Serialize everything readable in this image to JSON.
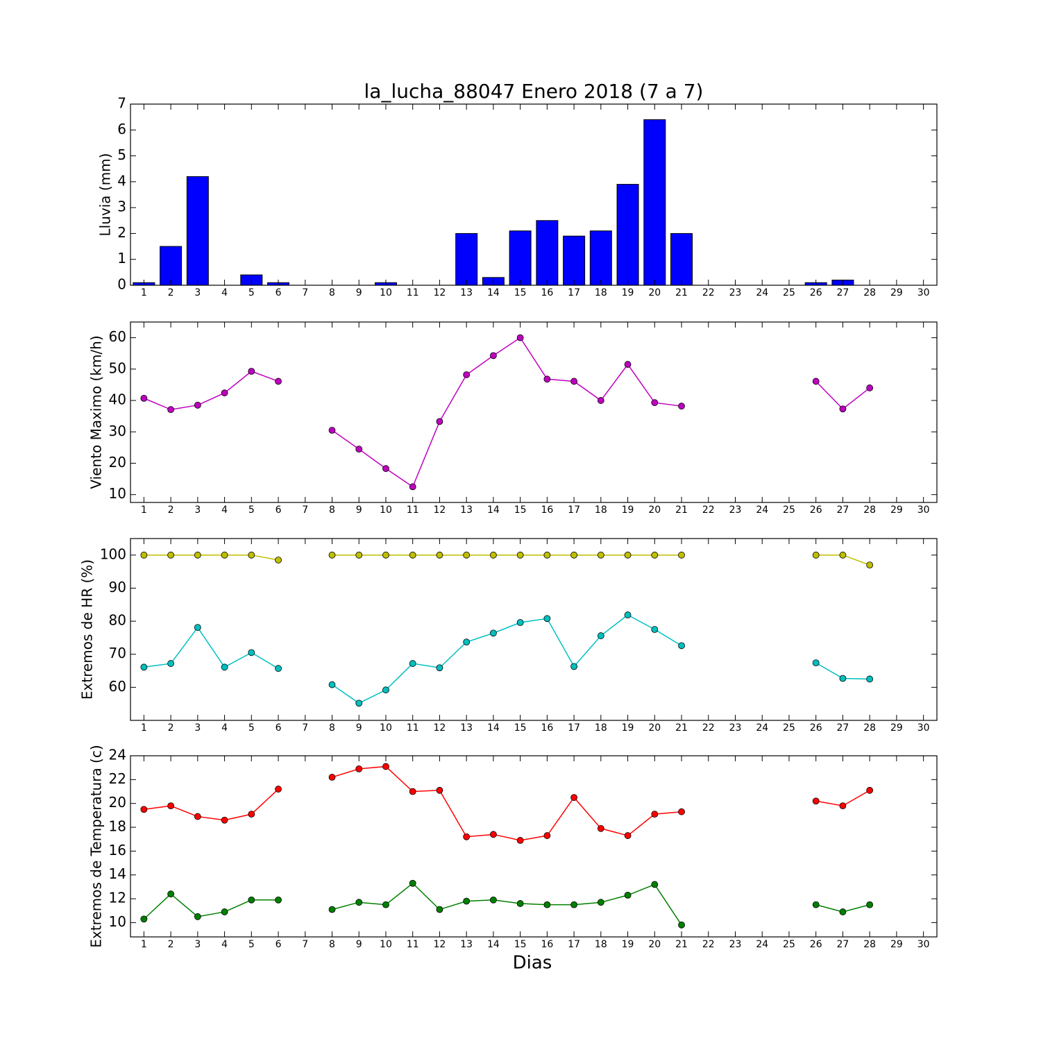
{
  "chart_data": [
    {
      "type": "bar",
      "title": "la_lucha_88047 Enero 2018  (7 a 7)",
      "y_label": "Lluvia (mm)",
      "color": "#0000ff",
      "x": [
        1,
        2,
        3,
        4,
        5,
        6,
        7,
        8,
        9,
        10,
        11,
        12,
        13,
        14,
        15,
        16,
        17,
        18,
        19,
        20,
        21,
        22,
        23,
        24,
        25,
        26,
        27,
        28,
        29,
        30
      ],
      "values": [
        0.1,
        1.5,
        4.2,
        0,
        0.4,
        0.1,
        0,
        0,
        0,
        0.1,
        0,
        0,
        2.0,
        0.3,
        2.1,
        2.5,
        1.9,
        2.1,
        3.9,
        6.4,
        2.0,
        null,
        null,
        null,
        null,
        0.1,
        0.2,
        0,
        null,
        null
      ],
      "xlim": [
        0.5,
        30.5
      ],
      "xticks": [
        1,
        2,
        3,
        4,
        5,
        6,
        7,
        8,
        9,
        10,
        11,
        12,
        13,
        14,
        15,
        16,
        17,
        18,
        19,
        20,
        21,
        22,
        23,
        24,
        25,
        26,
        27,
        28,
        29,
        30
      ],
      "ylim": [
        0,
        7
      ],
      "yticks": [
        0,
        1,
        2,
        3,
        4,
        5,
        6,
        7
      ]
    },
    {
      "type": "line",
      "y_label": "Viento Maximo (km/h)",
      "x": [
        1,
        2,
        3,
        4,
        5,
        6,
        7,
        8,
        9,
        10,
        11,
        12,
        13,
        14,
        15,
        16,
        17,
        18,
        19,
        20,
        21,
        22,
        23,
        24,
        25,
        26,
        27,
        28,
        29,
        30
      ],
      "series": [
        {
          "color": "#bf00bf",
          "values": [
            40.7,
            37.1,
            38.5,
            42.4,
            49.3,
            46.1,
            null,
            30.5,
            24.5,
            18.3,
            12.5,
            33.3,
            48.2,
            54.3,
            60.0,
            46.8,
            46.1,
            40.0,
            51.5,
            39.3,
            38.2,
            null,
            null,
            null,
            null,
            46.1,
            37.3,
            44.0,
            null,
            null
          ]
        }
      ],
      "xlim": [
        0.5,
        30.5
      ],
      "xticks": [
        1,
        2,
        3,
        4,
        5,
        6,
        7,
        8,
        9,
        10,
        11,
        12,
        13,
        14,
        15,
        16,
        17,
        18,
        19,
        20,
        21,
        22,
        23,
        24,
        25,
        26,
        27,
        28,
        29,
        30
      ],
      "ylim": [
        7.5,
        65
      ],
      "yticks": [
        10,
        20,
        30,
        40,
        50,
        60
      ]
    },
    {
      "type": "line",
      "y_label": "Extremos de HR (%)",
      "x": [
        1,
        2,
        3,
        4,
        5,
        6,
        7,
        8,
        9,
        10,
        11,
        12,
        13,
        14,
        15,
        16,
        17,
        18,
        19,
        20,
        21,
        22,
        23,
        24,
        25,
        26,
        27,
        28,
        29,
        30
      ],
      "series": [
        {
          "color": "#bfbf00",
          "values": [
            100,
            100,
            100,
            100,
            100,
            98.5,
            null,
            100,
            100,
            100,
            100,
            100,
            100,
            100,
            100,
            100,
            100,
            100,
            100,
            100,
            100,
            null,
            null,
            null,
            null,
            100,
            100,
            97,
            null,
            null
          ]
        },
        {
          "color": "#00bfbf",
          "values": [
            66.1,
            67.2,
            78.1,
            66.1,
            70.5,
            65.7,
            null,
            60.8,
            55.2,
            59.2,
            67.2,
            65.9,
            73.7,
            76.4,
            79.6,
            80.8,
            66.3,
            75.6,
            81.9,
            77.5,
            72.6,
            null,
            null,
            null,
            null,
            67.4,
            62.7,
            62.5,
            null,
            null
          ]
        }
      ],
      "xlim": [
        0.5,
        30.5
      ],
      "xticks": [
        1,
        2,
        3,
        4,
        5,
        6,
        7,
        8,
        9,
        10,
        11,
        12,
        13,
        14,
        15,
        16,
        17,
        18,
        19,
        20,
        21,
        22,
        23,
        24,
        25,
        26,
        27,
        28,
        29,
        30
      ],
      "ylim": [
        50,
        105
      ],
      "yticks": [
        60,
        70,
        80,
        90,
        100
      ]
    },
    {
      "type": "line",
      "y_label": "Extremos de Temperatura (c)",
      "x_label": "Dias",
      "x": [
        1,
        2,
        3,
        4,
        5,
        6,
        7,
        8,
        9,
        10,
        11,
        12,
        13,
        14,
        15,
        16,
        17,
        18,
        19,
        20,
        21,
        22,
        23,
        24,
        25,
        26,
        27,
        28,
        29,
        30
      ],
      "series": [
        {
          "color": "#ff0000",
          "values": [
            19.5,
            19.8,
            18.9,
            18.6,
            19.1,
            21.2,
            null,
            22.2,
            22.9,
            23.1,
            21.0,
            21.1,
            17.2,
            17.4,
            16.9,
            17.3,
            20.5,
            17.9,
            17.3,
            19.1,
            19.3,
            null,
            null,
            null,
            null,
            20.2,
            19.8,
            21.1,
            null,
            null
          ]
        },
        {
          "color": "#008000",
          "values": [
            10.3,
            12.4,
            10.5,
            10.9,
            11.9,
            11.9,
            null,
            11.1,
            11.7,
            11.5,
            13.3,
            11.1,
            11.8,
            11.9,
            11.6,
            11.5,
            11.5,
            11.7,
            12.3,
            13.2,
            9.8,
            null,
            null,
            null,
            null,
            11.5,
            10.9,
            11.5,
            null,
            null
          ]
        }
      ],
      "xlim": [
        0.5,
        30.5
      ],
      "xticks": [
        1,
        2,
        3,
        4,
        5,
        6,
        7,
        8,
        9,
        10,
        11,
        12,
        13,
        14,
        15,
        16,
        17,
        18,
        19,
        20,
        21,
        22,
        23,
        24,
        25,
        26,
        27,
        28,
        29,
        30
      ],
      "ylim": [
        8.8,
        24
      ],
      "yticks": [
        10,
        12,
        14,
        16,
        18,
        20,
        22,
        24
      ]
    }
  ]
}
